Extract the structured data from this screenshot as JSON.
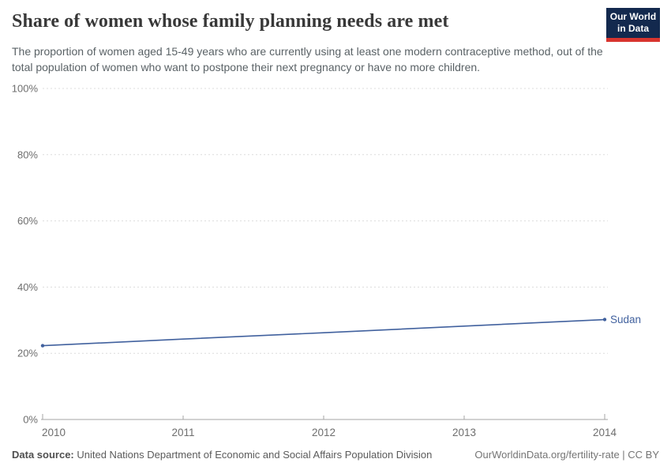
{
  "header": {
    "title": "Share of women whose family planning needs are met",
    "subtitle": "The proportion of women aged 15-49 years who are currently using at least one modern contraceptive method, out of the total population of women who want to postpone their next pregnancy or have no more children.",
    "logo": {
      "line1": "Our World",
      "line2": "in Data",
      "bg_color": "#13294e",
      "bar_color": "#d8352f"
    }
  },
  "chart_data": {
    "type": "line",
    "title": "Share of women whose family planning needs are met",
    "x": [
      2010,
      2011,
      2012,
      2013,
      2014
    ],
    "xticks": [
      "2010",
      "2011",
      "2012",
      "2013",
      "2014"
    ],
    "series": [
      {
        "name": "Sudan",
        "values": [
          22.3,
          24.3,
          26.2,
          28.2,
          30.2
        ],
        "color": "#41619e"
      }
    ],
    "end_label": "Sudan",
    "xlabel": "",
    "ylabel": "",
    "ylim": [
      0,
      100
    ],
    "ytick_values": [
      0,
      20,
      40,
      60,
      80,
      100
    ],
    "yticks": [
      "0%",
      "20%",
      "40%",
      "60%",
      "80%",
      "100%"
    ],
    "grid": "horizontal-dashed",
    "legend_position": "end-of-line",
    "colors": {
      "gridline": "#dcdcdc",
      "axis": "#a6a6a6",
      "tick_text": "#6e6e6e"
    }
  },
  "footer": {
    "source_label": "Data source:",
    "source_text": " United Nations Department of Economic and Social Affairs Population Division",
    "credit": "OurWorldinData.org/fertility-rate | CC BY"
  }
}
